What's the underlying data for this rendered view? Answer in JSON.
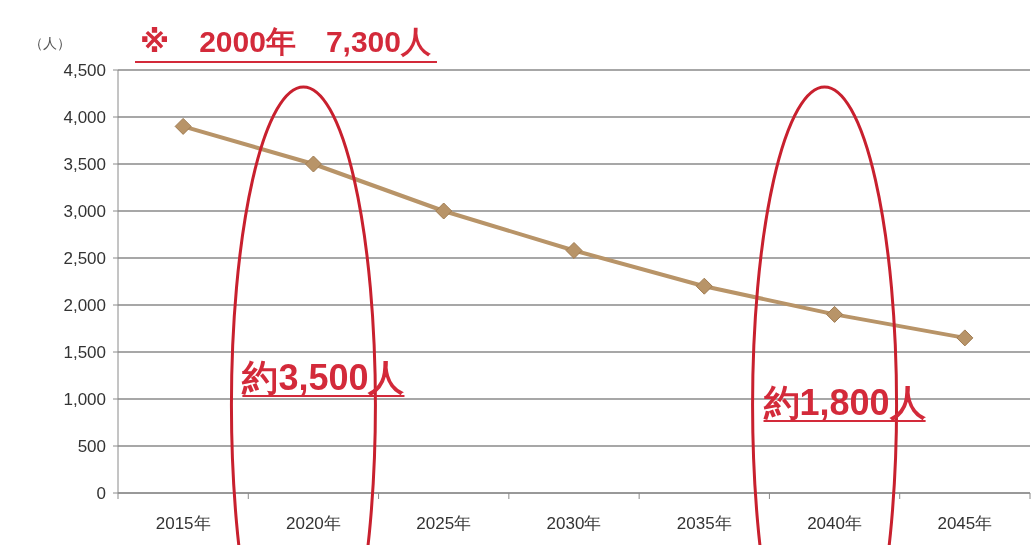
{
  "chart_data": {
    "type": "line",
    "ylabel": "（人）",
    "categories": [
      "2015年",
      "2020年",
      "2025年",
      "2030年",
      "2035年",
      "2040年",
      "2045年"
    ],
    "series": [
      {
        "color": "#b89468",
        "values": [
          3900,
          3500,
          3000,
          2580,
          2200,
          1900,
          1650
        ]
      }
    ],
    "ylim": [
      0,
      4500
    ],
    "yticks": [
      {
        "value": 0,
        "label": "0"
      },
      {
        "value": 500,
        "label": "500"
      },
      {
        "value": 1000,
        "label": "1,000"
      },
      {
        "value": 1500,
        "label": "1,500"
      },
      {
        "value": 2000,
        "label": "2,000"
      },
      {
        "value": 2500,
        "label": "2,500"
      },
      {
        "value": 3000,
        "label": "3,000"
      },
      {
        "value": 3500,
        "label": "3,500"
      },
      {
        "value": 4000,
        "label": "4,000"
      },
      {
        "value": 4500,
        "label": "4,500"
      }
    ],
    "grid": "y",
    "marker": "diamond",
    "line_style": "solid",
    "annotations": [
      "※　2000年　7,300人",
      "約3,500人",
      "約1,800人"
    ]
  }
}
